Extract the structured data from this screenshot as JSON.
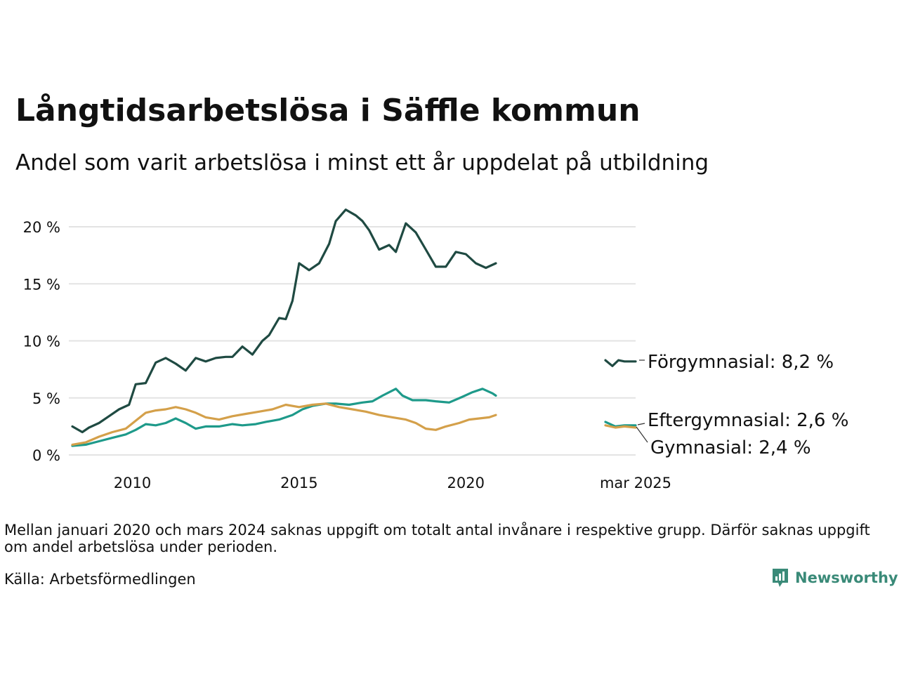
{
  "title": "Långtidsarbetslösa i Säffle kommun",
  "subtitle": "Andel som varit arbetslösa i minst ett år uppdelat på utbildning",
  "note": "Mellan januari 2020 och mars 2024 saknas uppgift om totalt antal invånare i respektive grupp. Därför saknas uppgift om andel arbetslösa under perioden.",
  "source": "Källa: Arbetsförmedlingen",
  "brand": "Newsworthy",
  "colors": {
    "forgymnasial": "#1f4a42",
    "eftergymnasial": "#1e9a8a",
    "gymnasial": "#d4a04a",
    "grid": "#e3e3e3"
  },
  "chart_data": {
    "type": "line",
    "title": "Långtidsarbetslösa i Säffle kommun",
    "ylabel": "",
    "xlabel": "",
    "ylim": [
      0,
      22
    ],
    "yticks": [
      0,
      5,
      10,
      15,
      20
    ],
    "ytick_labels": [
      "0 %",
      "5 %",
      "10 %",
      "15 %",
      "20 %"
    ],
    "xtick_labels": [
      "2010",
      "2015",
      "2020",
      "mar 2025"
    ],
    "xticks": [
      2010.0,
      2015.0,
      2020.0,
      2025.17
    ],
    "grid": true,
    "legend": "end-labels-right",
    "series": [
      {
        "name": "Förgymnasial",
        "end_label": "Förgymnasial: 8,2 %",
        "color": "#1f4a42",
        "x": [
          2008.2,
          2008.5,
          2008.7,
          2009.0,
          2009.3,
          2009.6,
          2009.9,
          2010.1,
          2010.4,
          2010.7,
          2011.0,
          2011.3,
          2011.6,
          2011.9,
          2012.2,
          2012.5,
          2012.8,
          2013.0,
          2013.3,
          2013.6,
          2013.9,
          2014.1,
          2014.4,
          2014.6,
          2014.8,
          2015.0,
          2015.3,
          2015.6,
          2015.9,
          2016.1,
          2016.4,
          2016.7,
          2016.9,
          2017.1,
          2017.4,
          2017.7,
          2017.9,
          2018.2,
          2018.5,
          2018.8,
          2019.1,
          2019.4,
          2019.7,
          2020.0,
          2020.3,
          2020.6,
          2020.9,
          2024.17,
          2024.4,
          2024.6,
          2024.8,
          2025.17
        ],
        "values": [
          2.5,
          2.0,
          2.4,
          2.8,
          3.4,
          4.0,
          4.4,
          6.2,
          6.3,
          8.1,
          8.5,
          8.0,
          7.4,
          8.5,
          8.2,
          8.5,
          8.6,
          8.6,
          9.5,
          8.8,
          10.0,
          10.5,
          12.0,
          11.9,
          13.5,
          16.8,
          16.2,
          16.8,
          18.5,
          20.5,
          21.5,
          21.0,
          20.5,
          19.7,
          18.0,
          18.4,
          17.8,
          20.3,
          19.5,
          18.0,
          16.5,
          16.5,
          17.8,
          17.6,
          16.8,
          16.4,
          16.8,
          8.3,
          7.8,
          8.3,
          8.2,
          8.2
        ]
      },
      {
        "name": "Eftergymnasial",
        "end_label": "Eftergymnasial: 2,6 %",
        "color": "#1e9a8a",
        "x": [
          2008.2,
          2008.6,
          2009.0,
          2009.4,
          2009.8,
          2010.1,
          2010.4,
          2010.7,
          2011.0,
          2011.3,
          2011.6,
          2011.9,
          2012.2,
          2012.6,
          2013.0,
          2013.3,
          2013.7,
          2014.0,
          2014.4,
          2014.8,
          2015.1,
          2015.4,
          2015.8,
          2016.1,
          2016.5,
          2016.9,
          2017.2,
          2017.5,
          2017.9,
          2018.1,
          2018.4,
          2018.8,
          2019.1,
          2019.5,
          2019.9,
          2020.2,
          2020.5,
          2020.8,
          2020.9,
          2024.17,
          2024.5,
          2024.8,
          2025.17
        ],
        "values": [
          0.8,
          0.9,
          1.2,
          1.5,
          1.8,
          2.2,
          2.7,
          2.6,
          2.8,
          3.2,
          2.8,
          2.3,
          2.5,
          2.5,
          2.7,
          2.6,
          2.7,
          2.9,
          3.1,
          3.5,
          4.0,
          4.3,
          4.5,
          4.5,
          4.4,
          4.6,
          4.7,
          5.2,
          5.8,
          5.2,
          4.8,
          4.8,
          4.7,
          4.6,
          5.1,
          5.5,
          5.8,
          5.4,
          5.2,
          2.9,
          2.5,
          2.6,
          2.6
        ]
      },
      {
        "name": "Gymnasial",
        "end_label": "Gymnasial: 2,4 %",
        "color": "#d4a04a",
        "x": [
          2008.2,
          2008.6,
          2009.0,
          2009.4,
          2009.8,
          2010.1,
          2010.4,
          2010.7,
          2011.0,
          2011.3,
          2011.6,
          2011.9,
          2012.2,
          2012.6,
          2013.0,
          2013.4,
          2013.8,
          2014.2,
          2014.6,
          2015.0,
          2015.4,
          2015.8,
          2016.2,
          2016.6,
          2017.0,
          2017.4,
          2017.8,
          2018.2,
          2018.5,
          2018.8,
          2019.1,
          2019.4,
          2019.8,
          2020.1,
          2020.4,
          2020.7,
          2020.9,
          2024.17,
          2024.5,
          2024.8,
          2025.17
        ],
        "values": [
          0.9,
          1.1,
          1.6,
          2.0,
          2.3,
          3.0,
          3.7,
          3.9,
          4.0,
          4.2,
          4.0,
          3.7,
          3.3,
          3.1,
          3.4,
          3.6,
          3.8,
          4.0,
          4.4,
          4.2,
          4.4,
          4.5,
          4.2,
          4.0,
          3.8,
          3.5,
          3.3,
          3.1,
          2.8,
          2.3,
          2.2,
          2.5,
          2.8,
          3.1,
          3.2,
          3.3,
          3.5,
          2.6,
          2.4,
          2.5,
          2.4
        ]
      }
    ]
  }
}
